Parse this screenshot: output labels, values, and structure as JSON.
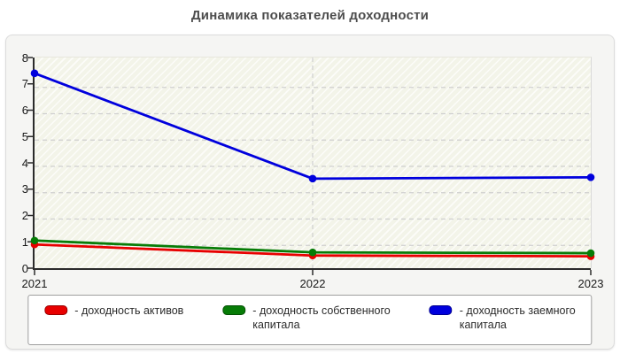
{
  "title": "Динамика показателей доходности",
  "chart_data": {
    "type": "line",
    "title": "Динамика показателей доходности",
    "categories": [
      "2021",
      "2022",
      "2023"
    ],
    "series": [
      {
        "name": "доходность активов",
        "color": "#e80000",
        "values": [
          0.9,
          0.48,
          0.45
        ]
      },
      {
        "name": "доходность собственного капитала",
        "color": "#077c07",
        "values": [
          1.05,
          0.6,
          0.57
        ]
      },
      {
        "name": "доходность заемного капитала",
        "color": "#0000dd",
        "values": [
          7.4,
          3.4,
          3.45
        ]
      }
    ],
    "ylim": [
      0,
      8
    ],
    "yticks": [
      0,
      1,
      2,
      3,
      4,
      5,
      6,
      7,
      8
    ],
    "grid": {
      "horizontal": "dashed",
      "vertical_at_inner_categories": "dashed"
    },
    "legend_position": "bottom",
    "legend": {
      "items": [
        {
          "color": "#e80000",
          "lines": [
            "- доходность активов"
          ]
        },
        {
          "color": "#077c07",
          "lines": [
            "- доходность собственного",
            "капитала"
          ]
        },
        {
          "color": "#0000dd",
          "lines": [
            "- доходность заемного",
            "капитала"
          ]
        }
      ]
    },
    "colors": {
      "axis": "#2b2b2b",
      "gridline": "#cfcfcf",
      "tick_label": "#1a1a1a"
    }
  }
}
